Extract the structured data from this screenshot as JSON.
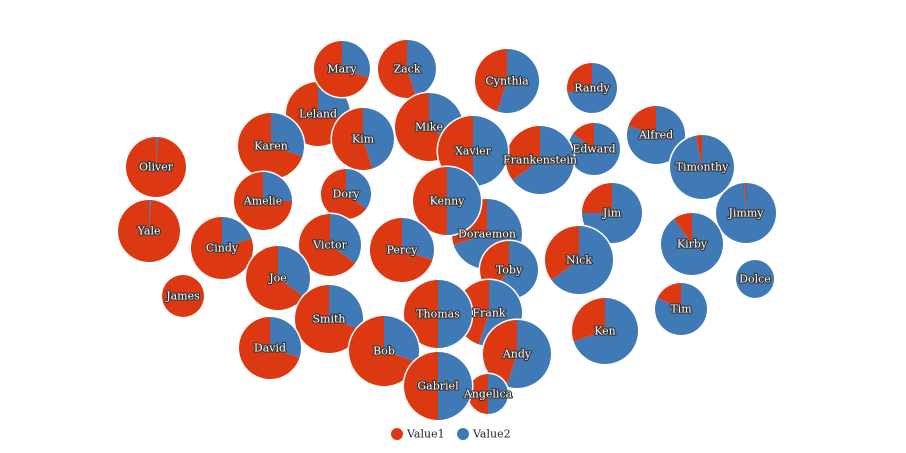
{
  "chart_data": {
    "type": "pie-bubble",
    "series_names": [
      "Value1",
      "Value2"
    ],
    "colors": {
      "Value1": "#dc3912",
      "Value2": "#3f79b6",
      "outline": "#ffffff"
    },
    "nodes": [
      {
        "name": "Mary",
        "value1": 70,
        "value2": 30
      },
      {
        "name": "Zack",
        "value1": 55,
        "value2": 45
      },
      {
        "name": "Cynthia",
        "value1": 45,
        "value2": 55
      },
      {
        "name": "Randy",
        "value1": 28,
        "value2": 72
      },
      {
        "name": "Leland",
        "value1": 72,
        "value2": 28
      },
      {
        "name": "Mike",
        "value1": 65,
        "value2": 35
      },
      {
        "name": "Karen",
        "value1": 70,
        "value2": 30
      },
      {
        "name": "Kim",
        "value1": 55,
        "value2": 45
      },
      {
        "name": "Xavier",
        "value1": 50,
        "value2": 50
      },
      {
        "name": "Frankenstein",
        "value1": 35,
        "value2": 65
      },
      {
        "name": "Edward",
        "value1": 15,
        "value2": 85
      },
      {
        "name": "Alfred",
        "value1": 20,
        "value2": 80
      },
      {
        "name": "Oliver",
        "value1": 99,
        "value2": 1
      },
      {
        "name": "Timonthy",
        "value1": 3,
        "value2": 97
      },
      {
        "name": "Amelie",
        "value1": 75,
        "value2": 25
      },
      {
        "name": "Dory",
        "value1": 65,
        "value2": 35
      },
      {
        "name": "Kenny",
        "value1": 50,
        "value2": 50
      },
      {
        "name": "Jimmy",
        "value1": 1,
        "value2": 99
      },
      {
        "name": "Jim",
        "value1": 25,
        "value2": 75
      },
      {
        "name": "Yale",
        "value1": 99,
        "value2": 1
      },
      {
        "name": "Cindy",
        "value1": 80,
        "value2": 20
      },
      {
        "name": "Victor",
        "value1": 65,
        "value2": 35
      },
      {
        "name": "Percy",
        "value1": 70,
        "value2": 30
      },
      {
        "name": "Doraemon",
        "value1": 30,
        "value2": 70
      },
      {
        "name": "Kirby",
        "value1": 10,
        "value2": 90
      },
      {
        "name": "Nick",
        "value1": 35,
        "value2": 65
      },
      {
        "name": "Toby",
        "value1": 40,
        "value2": 60
      },
      {
        "name": "Joe",
        "value1": 65,
        "value2": 35
      },
      {
        "name": "Dolce",
        "value1": 0,
        "value2": 100
      },
      {
        "name": "James",
        "value1": 100,
        "value2": 0
      },
      {
        "name": "Tim",
        "value1": 18,
        "value2": 82
      },
      {
        "name": "Thomas",
        "value1": 50,
        "value2": 50
      },
      {
        "name": "Frank",
        "value1": 45,
        "value2": 55
      },
      {
        "name": "Smith",
        "value1": 70,
        "value2": 30
      },
      {
        "name": "Ken",
        "value1": 30,
        "value2": 70
      },
      {
        "name": "David",
        "value1": 70,
        "value2": 30
      },
      {
        "name": "Bob",
        "value1": 70,
        "value2": 30
      },
      {
        "name": "Andy",
        "value1": 45,
        "value2": 55
      },
      {
        "name": "Gabriel",
        "value1": 50,
        "value2": 50
      },
      {
        "name": "Angelica",
        "value1": 50,
        "value2": 50
      }
    ]
  }
}
